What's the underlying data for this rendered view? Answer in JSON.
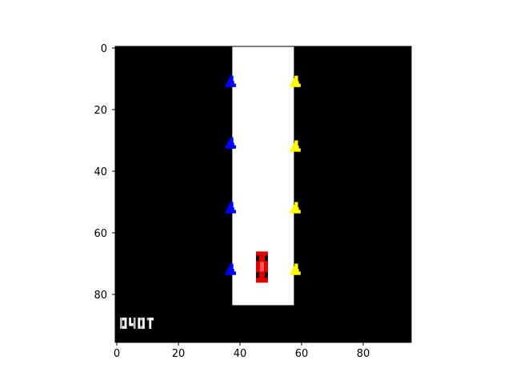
{
  "figure": {
    "background": "#ffffff",
    "frame_size": [
      96,
      96
    ],
    "colors": {
      "void": "#000000",
      "track": "#ffffff",
      "cone_left": "#0000ff",
      "cone_right": "#ffff00",
      "car_body": "#dd0000",
      "car_wheels": "#111111",
      "axis": "#000000"
    }
  },
  "axes": {
    "x_ticks": [
      "0",
      "20",
      "40",
      "60",
      "80"
    ],
    "y_ticks": [
      "0",
      "20",
      "40",
      "60",
      "80"
    ],
    "x_tick_values": [
      0,
      20,
      40,
      60,
      80
    ],
    "y_tick_values": [
      0,
      20,
      40,
      60,
      80
    ]
  },
  "game": {
    "track": {
      "x_range": [
        37.5,
        57.5
      ],
      "y_range": [
        -0.5,
        83.5
      ]
    },
    "cones_left": [
      {
        "x": 37,
        "y": 11
      },
      {
        "x": 37,
        "y": 31
      },
      {
        "x": 37,
        "y": 52
      },
      {
        "x": 37,
        "y": 72
      }
    ],
    "cones_right": [
      {
        "x": 58,
        "y": 11
      },
      {
        "x": 58,
        "y": 32
      },
      {
        "x": 58,
        "y": 52
      },
      {
        "x": 58,
        "y": 72
      }
    ],
    "player_car": {
      "x": 47,
      "y": 71
    },
    "score_text_icon": "pixel-score-digits"
  }
}
